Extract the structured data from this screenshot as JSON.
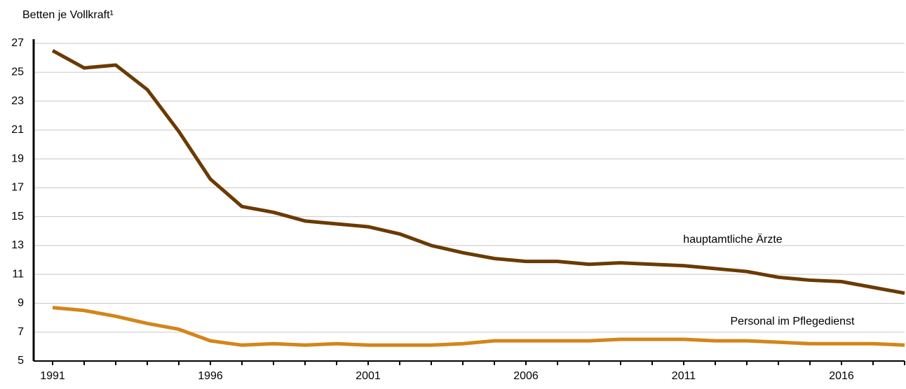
{
  "chart_data": {
    "type": "line",
    "y_label": "Betten je Vollkraft¹",
    "x": [
      1991,
      1992,
      1993,
      1994,
      1995,
      1996,
      1997,
      1998,
      1999,
      2000,
      2001,
      2002,
      2003,
      2004,
      2005,
      2006,
      2007,
      2008,
      2009,
      2010,
      2011,
      2012,
      2013,
      2014,
      2015,
      2016,
      2017,
      2018
    ],
    "series": [
      {
        "name": "hauptamtliche Ärzte",
        "color": "#6b3a00",
        "values": [
          26.5,
          25.3,
          25.5,
          23.8,
          20.9,
          17.6,
          15.7,
          15.3,
          14.7,
          14.5,
          14.3,
          13.8,
          13.0,
          12.5,
          12.1,
          11.9,
          11.9,
          11.7,
          11.8,
          11.7,
          11.6,
          11.4,
          11.2,
          10.8,
          10.6,
          10.5,
          10.1,
          9.7
        ]
      },
      {
        "name": "Personal im Pflegedienst",
        "color": "#d4851a",
        "values": [
          8.7,
          8.5,
          8.1,
          7.6,
          7.2,
          6.4,
          6.1,
          6.2,
          6.1,
          6.2,
          6.1,
          6.1,
          6.1,
          6.2,
          6.4,
          6.4,
          6.4,
          6.4,
          6.5,
          6.5,
          6.5,
          6.4,
          6.4,
          6.3,
          6.2,
          6.2,
          6.2,
          6.1
        ]
      }
    ],
    "xlim": [
      1990.4,
      2018
    ],
    "xticks": [
      1991,
      1996,
      2001,
      2006,
      2011,
      2016
    ],
    "ylim": [
      5,
      27
    ],
    "yticks": [
      5,
      7,
      9,
      11,
      13,
      15,
      17,
      19,
      21,
      23,
      25,
      27
    ],
    "grid": true
  }
}
